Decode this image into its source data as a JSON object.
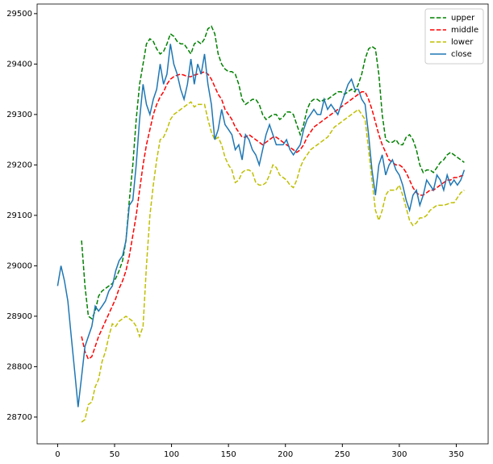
{
  "chart_data": {
    "type": "line",
    "x": [
      0,
      3,
      6,
      9,
      12,
      15,
      18,
      21,
      24,
      27,
      30,
      33,
      36,
      39,
      42,
      45,
      48,
      51,
      54,
      57,
      60,
      63,
      66,
      69,
      72,
      75,
      78,
      81,
      84,
      87,
      90,
      93,
      96,
      99,
      102,
      105,
      108,
      111,
      114,
      117,
      120,
      123,
      126,
      129,
      132,
      135,
      138,
      141,
      144,
      147,
      150,
      153,
      156,
      159,
      162,
      165,
      168,
      171,
      174,
      177,
      180,
      183,
      186,
      189,
      192,
      195,
      198,
      201,
      204,
      207,
      210,
      213,
      216,
      219,
      222,
      225,
      228,
      231,
      234,
      237,
      240,
      243,
      246,
      249,
      252,
      255,
      258,
      261,
      264,
      267,
      270,
      273,
      276,
      279,
      282,
      285,
      288,
      291,
      294,
      297,
      300,
      303,
      306,
      309,
      312,
      315,
      318,
      321,
      324,
      327,
      330,
      333,
      336,
      339,
      342,
      345,
      348,
      351,
      354,
      357
    ],
    "series": [
      {
        "name": "upper",
        "color": "#008000",
        "linestyle": "dashed",
        "values": [
          null,
          null,
          null,
          null,
          null,
          null,
          null,
          29050,
          28960,
          28900,
          28895,
          28910,
          28940,
          28950,
          28955,
          28960,
          28965,
          28975,
          28990,
          29010,
          29050,
          29130,
          29200,
          29290,
          29360,
          29400,
          29440,
          29450,
          29445,
          29430,
          29420,
          29425,
          29440,
          29460,
          29455,
          29445,
          29440,
          29440,
          29430,
          29420,
          29440,
          29445,
          29440,
          29450,
          29470,
          29475,
          29460,
          29420,
          29400,
          29390,
          29385,
          29385,
          29380,
          29360,
          29330,
          29320,
          29325,
          29330,
          29330,
          29320,
          29300,
          29290,
          29295,
          29300,
          29300,
          29290,
          29295,
          29305,
          29305,
          29300,
          29280,
          29260,
          29280,
          29310,
          29325,
          29330,
          29330,
          29325,
          29330,
          29330,
          29335,
          29340,
          29345,
          29345,
          29340,
          29345,
          29350,
          29345,
          29360,
          29380,
          29410,
          29430,
          29435,
          29430,
          29380,
          29300,
          29250,
          29245,
          29245,
          29250,
          29240,
          29240,
          29255,
          29260,
          29250,
          29230,
          29200,
          29185,
          29190,
          29190,
          29185,
          29195,
          29205,
          29210,
          29220,
          29225,
          29220,
          29215,
          29210,
          29205
        ]
      },
      {
        "name": "middle",
        "color": "#ff0000",
        "linestyle": "dashed",
        "values": [
          null,
          null,
          null,
          null,
          null,
          null,
          null,
          28860,
          28830,
          28815,
          28820,
          28840,
          28860,
          28875,
          28890,
          28905,
          28920,
          28935,
          28955,
          28970,
          28990,
          29020,
          29060,
          29100,
          29150,
          29200,
          29240,
          29270,
          29300,
          29320,
          29335,
          29345,
          29360,
          29370,
          29375,
          29378,
          29380,
          29378,
          29375,
          29375,
          29378,
          29380,
          29382,
          29385,
          29380,
          29370,
          29355,
          29340,
          29330,
          29310,
          29300,
          29290,
          29275,
          29265,
          29255,
          29255,
          29260,
          29255,
          29250,
          29245,
          29240,
          29245,
          29250,
          29255,
          29255,
          29250,
          29245,
          29240,
          29235,
          29230,
          29225,
          29230,
          29240,
          29255,
          29265,
          29275,
          29280,
          29285,
          29290,
          29295,
          29300,
          29305,
          29310,
          29315,
          29320,
          29325,
          29330,
          29335,
          29340,
          29345,
          29345,
          29330,
          29310,
          29285,
          29260,
          29240,
          29225,
          29210,
          29205,
          29200,
          29200,
          29195,
          29185,
          29170,
          29155,
          29145,
          29140,
          29140,
          29145,
          29150,
          29150,
          29155,
          29160,
          29165,
          29170,
          29170,
          29175,
          29175,
          29178,
          29180
        ]
      },
      {
        "name": "lower",
        "color": "#bfbf00",
        "linestyle": "dashed",
        "values": [
          null,
          null,
          null,
          null,
          null,
          null,
          null,
          28690,
          28695,
          28725,
          28730,
          28760,
          28775,
          28810,
          28830,
          28860,
          28885,
          28880,
          28890,
          28895,
          28900,
          28895,
          28890,
          28880,
          28860,
          28880,
          29000,
          29100,
          29160,
          29210,
          29250,
          29255,
          29270,
          29290,
          29300,
          29305,
          29310,
          29315,
          29320,
          29325,
          29315,
          29320,
          29320,
          29320,
          29290,
          29265,
          29250,
          29255,
          29240,
          29215,
          29200,
          29190,
          29165,
          29170,
          29185,
          29190,
          29190,
          29185,
          29165,
          29160,
          29160,
          29165,
          29180,
          29200,
          29195,
          29180,
          29175,
          29170,
          29160,
          29155,
          29170,
          29195,
          29210,
          29220,
          29230,
          29235,
          29240,
          29245,
          29250,
          29255,
          29265,
          29275,
          29280,
          29285,
          29290,
          29295,
          29300,
          29305,
          29310,
          29300,
          29290,
          29230,
          29170,
          29110,
          29090,
          29110,
          29140,
          29150,
          29150,
          29150,
          29160,
          29140,
          29115,
          29090,
          29080,
          29085,
          29095,
          29095,
          29100,
          29110,
          29115,
          29120,
          29120,
          29120,
          29122,
          29125,
          29125,
          29135,
          29145,
          29150
        ]
      },
      {
        "name": "close",
        "color": "#1f77b4",
        "linestyle": "solid",
        "values": [
          28960,
          29000,
          28970,
          28930,
          28860,
          28790,
          28720,
          28780,
          28840,
          28860,
          28880,
          28920,
          28910,
          28920,
          28930,
          28950,
          28960,
          28990,
          29010,
          29020,
          29050,
          29120,
          29130,
          29200,
          29290,
          29360,
          29320,
          29300,
          29330,
          29350,
          29400,
          29360,
          29380,
          29440,
          29400,
          29380,
          29350,
          29330,
          29360,
          29410,
          29360,
          29400,
          29380,
          29420,
          29360,
          29320,
          29250,
          29270,
          29310,
          29280,
          29270,
          29260,
          29230,
          29240,
          29210,
          29260,
          29250,
          29230,
          29220,
          29200,
          29230,
          29260,
          29280,
          29260,
          29240,
          29240,
          29240,
          29250,
          29230,
          29220,
          29230,
          29240,
          29270,
          29290,
          29300,
          29310,
          29300,
          29300,
          29330,
          29310,
          29320,
          29310,
          29300,
          29320,
          29340,
          29360,
          29370,
          29350,
          29350,
          29330,
          29320,
          29260,
          29190,
          29140,
          29200,
          29220,
          29180,
          29200,
          29210,
          29190,
          29180,
          29160,
          29130,
          29110,
          29140,
          29150,
          29120,
          29140,
          29170,
          29160,
          29150,
          29180,
          29170,
          29150,
          29180,
          29160,
          29170,
          29160,
          29170,
          29190
        ]
      }
    ],
    "xlim": [
      -18,
      378
    ],
    "xticks": [
      0,
      50,
      100,
      150,
      200,
      250,
      300,
      350
    ],
    "ylim": [
      28647,
      29519
    ],
    "yticks": [
      28700,
      28800,
      28900,
      29000,
      29100,
      29200,
      29300,
      29400,
      29500
    ],
    "grid": false,
    "legend": "upper right"
  }
}
